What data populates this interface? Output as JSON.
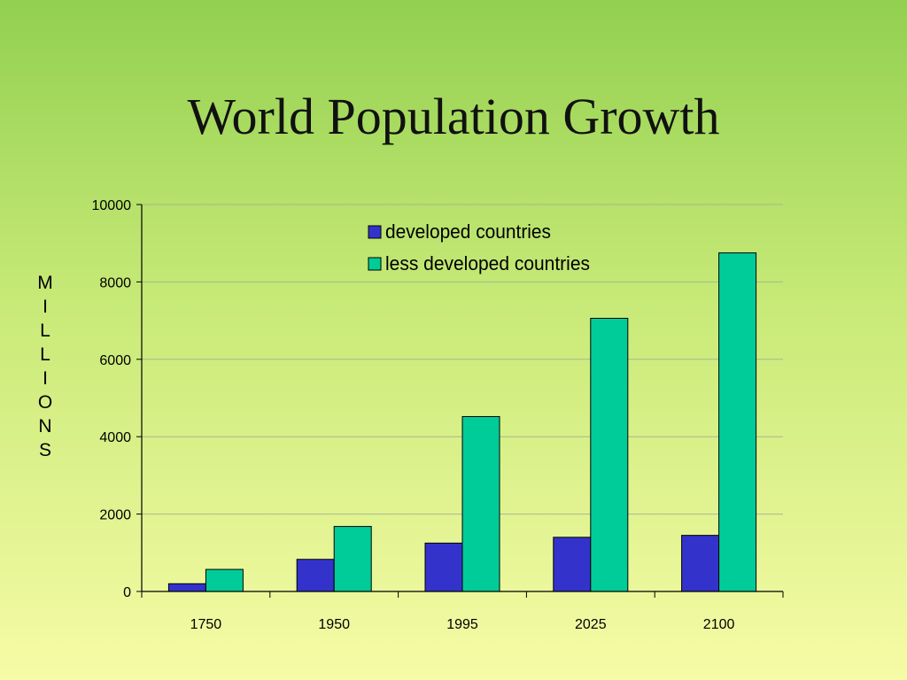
{
  "slide": {
    "title": "World Population Growth"
  },
  "chart_data": {
    "type": "bar",
    "title": "World Population Growth",
    "xlabel": "",
    "ylabel": "MILLIONS",
    "categories": [
      "1750",
      "1950",
      "1995",
      "2025",
      "2100"
    ],
    "ylim": [
      0,
      10000
    ],
    "yticks": [
      0,
      2000,
      4000,
      6000,
      8000,
      10000
    ],
    "grid": true,
    "legend": "top-center",
    "series": [
      {
        "name": "developed countries",
        "values": [
          200,
          830,
          1250,
          1400,
          1450
        ],
        "color": "#3333cc"
      },
      {
        "name": "less developed countries",
        "values": [
          570,
          1680,
          4520,
          7060,
          8750
        ],
        "color": "#00cc99"
      }
    ]
  }
}
